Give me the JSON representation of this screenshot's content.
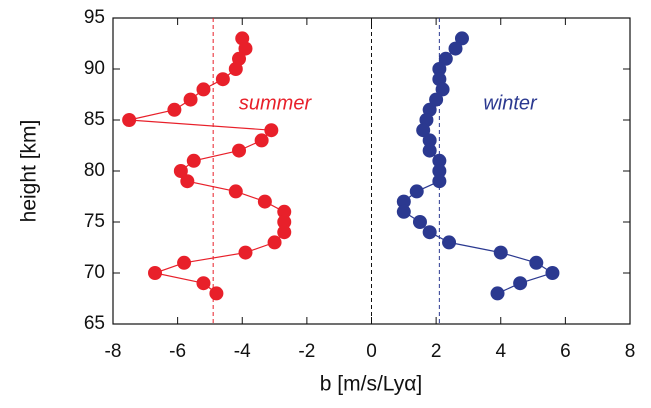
{
  "chart_data": {
    "type": "scatter",
    "x_label": "b [m/s/Lyα]",
    "y_label": "height [km]",
    "xlim": [
      -8,
      8
    ],
    "xticks": [
      -8,
      -6,
      -4,
      -2,
      0,
      2,
      4,
      6,
      8
    ],
    "ylim": [
      65,
      95
    ],
    "yticks": [
      65,
      70,
      75,
      80,
      85,
      90,
      95
    ],
    "zero_line": true,
    "series": [
      {
        "name": "summer",
        "color": "#e8202a",
        "mean": -4.9,
        "x": [
          -4.0,
          -3.9,
          -4.1,
          -4.2,
          -4.6,
          -5.2,
          -5.6,
          -6.1,
          -7.5,
          -3.1,
          -3.4,
          -4.1,
          -5.5,
          -5.9,
          -5.7,
          -4.2,
          -3.3,
          -2.7,
          -2.7,
          -2.7,
          -3.0,
          -3.9,
          -5.8,
          -6.7,
          -5.2,
          -4.8
        ],
        "y": [
          93,
          92,
          91,
          90,
          89,
          88,
          87,
          86,
          85,
          84,
          83,
          82,
          81,
          80,
          79,
          78,
          77,
          76,
          75,
          74,
          73,
          72,
          71,
          70,
          69,
          68
        ]
      },
      {
        "name": "winter",
        "color": "#2b3990",
        "mean": 2.1,
        "x": [
          2.8,
          2.6,
          2.3,
          2.1,
          2.1,
          2.2,
          2.0,
          1.8,
          1.7,
          1.6,
          1.8,
          1.8,
          2.1,
          2.1,
          2.1,
          1.4,
          1.0,
          1.0,
          1.5,
          1.8,
          2.4,
          4.0,
          5.1,
          5.6,
          4.6,
          3.9
        ],
        "y": [
          93,
          92,
          91,
          90,
          89,
          88,
          87,
          86,
          85,
          84,
          83,
          82,
          81,
          80,
          79,
          78,
          77,
          76,
          75,
          74,
          73,
          72,
          71,
          70,
          69,
          68
        ]
      }
    ]
  }
}
